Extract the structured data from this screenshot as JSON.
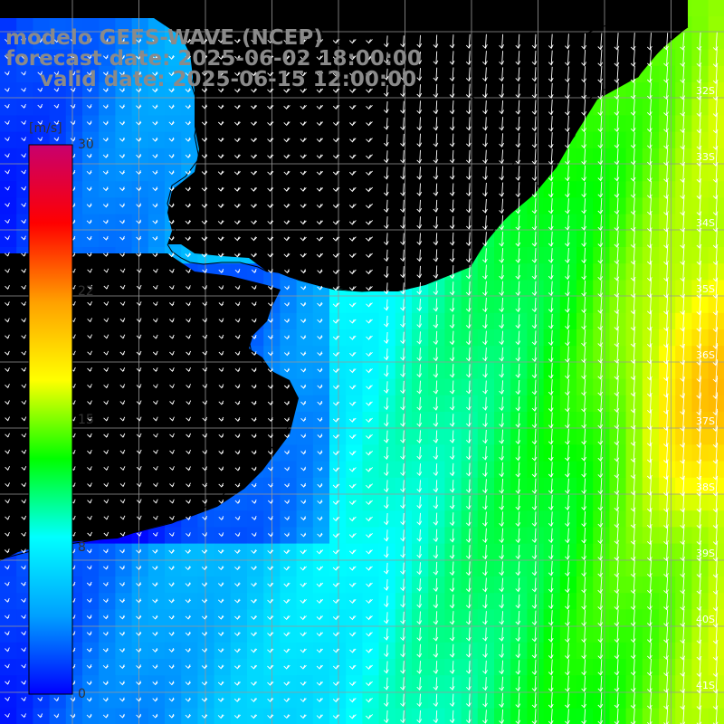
{
  "title": {
    "line1": "modelo GEFS-WAVE (NCEP)",
    "line2": "forecast date: 2025-06-02 18:00:00",
    "line3": "valid date: 2025-06-15 12:00:00"
  },
  "colorbar": {
    "unit": "[m/s]",
    "ticks": [
      "30",
      "22",
      "15",
      "8",
      "0"
    ],
    "tick_values": [
      30,
      22,
      15,
      8,
      0
    ],
    "range": [
      0,
      30
    ],
    "colors": [
      "#0000ff",
      "#00a0ff",
      "#00ffff",
      "#00ff00",
      "#ffff00",
      "#ffa000",
      "#ff0000",
      "#c8006e"
    ]
  },
  "map": {
    "lat_labels": [
      "32S",
      "33S",
      "34S",
      "35S",
      "36S",
      "37S",
      "38S",
      "39S",
      "40S",
      "41S"
    ],
    "lat_values": [
      -32,
      -33,
      -34,
      -35,
      -36,
      -37,
      -38,
      -39,
      -40,
      -41
    ],
    "land_color": "#ffffff",
    "grid_color": "#999999",
    "coast_color": "#000000",
    "arrow_color": "#ffffff"
  }
}
